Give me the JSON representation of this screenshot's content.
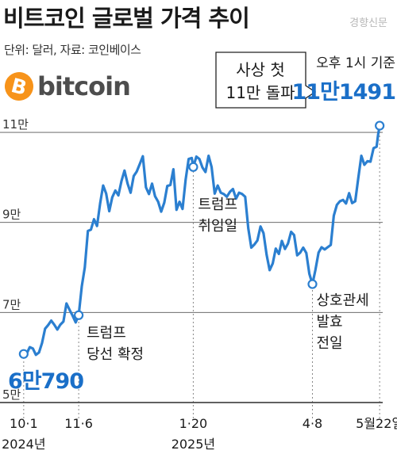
{
  "header": {
    "title": "비트코인 글로벌 가격 추이",
    "source_mark": "경향신문",
    "unit_source": "단위: 달러, 자료: 코인베이스"
  },
  "brand": {
    "symbol": "B",
    "wordmark": "bitcoin",
    "coin_color": "#f7931a"
  },
  "colors": {
    "line": "#2b7fd0",
    "value_text": "#1a6fc8",
    "axis": "#222222",
    "guide": "#888888"
  },
  "callout": {
    "line1": "사상 첫",
    "line2": "11만 돌파"
  },
  "latest": {
    "time_label": "오후 1시 기준",
    "value_label": "11만1491"
  },
  "start_value_label": "6만790",
  "annotations": [
    {
      "date": "2024-11-06",
      "lines": [
        "트럼프",
        "당선 확정"
      ]
    },
    {
      "date": "2025-01-20",
      "lines": [
        "트럼프",
        "취임일"
      ]
    },
    {
      "date": "2025-04-08",
      "lines": [
        "상호관세",
        "발효",
        "전일"
      ]
    }
  ],
  "chart_data": {
    "type": "line",
    "title": "비트코인 글로벌 가격 추이",
    "unit": "달러",
    "ylim": [
      50000,
      113000
    ],
    "y_ticks": [
      {
        "value": 50000,
        "label": "5만"
      },
      {
        "value": 70000,
        "label": "7만"
      },
      {
        "value": 90000,
        "label": "9만"
      },
      {
        "value": 110000,
        "label": "11만"
      }
    ],
    "x_ticks": [
      {
        "date": "2024-10-01",
        "label": "10·1",
        "sub": "2024년"
      },
      {
        "date": "2024-11-06",
        "label": "11·6",
        "sub": ""
      },
      {
        "date": "2025-01-20",
        "label": "1·20",
        "sub": "2025년"
      },
      {
        "date": "2025-04-08",
        "label": "4·8",
        "sub": ""
      },
      {
        "date": "2025-05-22",
        "label": "5월22일",
        "sub": ""
      }
    ],
    "x_range": [
      "2024-09-29",
      "2025-05-24"
    ],
    "highlighted_points": [
      {
        "date": "2024-10-01",
        "value": 60790
      },
      {
        "date": "2024-11-06",
        "value": 69400
      },
      {
        "date": "2025-01-20",
        "value": 102300
      },
      {
        "date": "2025-04-08",
        "value": 76300
      },
      {
        "date": "2025-05-22",
        "value": 111491
      }
    ],
    "series": [
      {
        "points": [
          [
            "2024-10-01",
            60790
          ],
          [
            "2024-10-03",
            60900
          ],
          [
            "2024-10-05",
            62300
          ],
          [
            "2024-10-07",
            62000
          ],
          [
            "2024-10-09",
            60600
          ],
          [
            "2024-10-11",
            61100
          ],
          [
            "2024-10-13",
            63200
          ],
          [
            "2024-10-15",
            66400
          ],
          [
            "2024-10-17",
            67200
          ],
          [
            "2024-10-19",
            68200
          ],
          [
            "2024-10-21",
            67300
          ],
          [
            "2024-10-23",
            66200
          ],
          [
            "2024-10-25",
            67300
          ],
          [
            "2024-10-27",
            68000
          ],
          [
            "2024-10-29",
            72000
          ],
          [
            "2024-10-31",
            70600
          ],
          [
            "2024-11-02",
            69300
          ],
          [
            "2024-11-04",
            67800
          ],
          [
            "2024-11-06",
            69400
          ],
          [
            "2024-11-08",
            75800
          ],
          [
            "2024-11-10",
            80000
          ],
          [
            "2024-11-12",
            88100
          ],
          [
            "2024-11-14",
            88400
          ],
          [
            "2024-11-16",
            90700
          ],
          [
            "2024-11-18",
            89200
          ],
          [
            "2024-11-20",
            94200
          ],
          [
            "2024-11-22",
            98200
          ],
          [
            "2024-11-24",
            96400
          ],
          [
            "2024-11-26",
            92500
          ],
          [
            "2024-11-28",
            95600
          ],
          [
            "2024-11-30",
            97100
          ],
          [
            "2024-12-02",
            96000
          ],
          [
            "2024-12-04",
            99200
          ],
          [
            "2024-12-06",
            101500
          ],
          [
            "2024-12-08",
            98600
          ],
          [
            "2024-12-10",
            96600
          ],
          [
            "2024-12-12",
            100300
          ],
          [
            "2024-12-14",
            101300
          ],
          [
            "2024-12-16",
            103000
          ],
          [
            "2024-12-18",
            104700
          ],
          [
            "2024-12-20",
            97800
          ],
          [
            "2024-12-22",
            96300
          ],
          [
            "2024-12-24",
            98600
          ],
          [
            "2024-12-26",
            95800
          ],
          [
            "2024-12-28",
            94600
          ],
          [
            "2024-12-30",
            92400
          ],
          [
            "2025-01-01",
            94400
          ],
          [
            "2025-01-03",
            98100
          ],
          [
            "2025-01-05",
            98300
          ],
          [
            "2025-01-07",
            101800
          ],
          [
            "2025-01-09",
            92800
          ],
          [
            "2025-01-11",
            94600
          ],
          [
            "2025-01-13",
            93000
          ],
          [
            "2025-01-15",
            99500
          ],
          [
            "2025-01-17",
            104100
          ],
          [
            "2025-01-19",
            104300
          ],
          [
            "2025-01-20",
            102300
          ],
          [
            "2025-01-22",
            104600
          ],
          [
            "2025-01-24",
            104100
          ],
          [
            "2025-01-26",
            102200
          ],
          [
            "2025-01-28",
            101200
          ],
          [
            "2025-01-30",
            104800
          ],
          [
            "2025-02-01",
            102300
          ],
          [
            "2025-02-03",
            96400
          ],
          [
            "2025-02-05",
            98200
          ],
          [
            "2025-02-07",
            96600
          ],
          [
            "2025-02-09",
            96300
          ],
          [
            "2025-02-11",
            95700
          ],
          [
            "2025-02-13",
            96800
          ],
          [
            "2025-02-15",
            97400
          ],
          [
            "2025-02-17",
            95300
          ],
          [
            "2025-02-19",
            96600
          ],
          [
            "2025-02-21",
            96300
          ],
          [
            "2025-02-23",
            95700
          ],
          [
            "2025-02-25",
            88700
          ],
          [
            "2025-02-27",
            84400
          ],
          [
            "2025-03-01",
            85100
          ],
          [
            "2025-03-03",
            86000
          ],
          [
            "2025-03-05",
            89100
          ],
          [
            "2025-03-07",
            87600
          ],
          [
            "2025-03-09",
            82800
          ],
          [
            "2025-03-11",
            79400
          ],
          [
            "2025-03-13",
            80900
          ],
          [
            "2025-03-15",
            84200
          ],
          [
            "2025-03-17",
            83000
          ],
          [
            "2025-03-19",
            85900
          ],
          [
            "2025-03-21",
            84100
          ],
          [
            "2025-03-23",
            85300
          ],
          [
            "2025-03-25",
            87900
          ],
          [
            "2025-03-27",
            87200
          ],
          [
            "2025-03-29",
            82700
          ],
          [
            "2025-03-31",
            83300
          ],
          [
            "2025-04-02",
            84400
          ],
          [
            "2025-04-04",
            83200
          ],
          [
            "2025-04-06",
            78600
          ],
          [
            "2025-04-08",
            76300
          ],
          [
            "2025-04-10",
            79500
          ],
          [
            "2025-04-12",
            83300
          ],
          [
            "2025-04-14",
            84500
          ],
          [
            "2025-04-16",
            84000
          ],
          [
            "2025-04-18",
            84500
          ],
          [
            "2025-04-20",
            85000
          ],
          [
            "2025-04-22",
            91500
          ],
          [
            "2025-04-24",
            93900
          ],
          [
            "2025-04-26",
            94700
          ],
          [
            "2025-04-28",
            95000
          ],
          [
            "2025-04-30",
            94200
          ],
          [
            "2025-05-02",
            96500
          ],
          [
            "2025-05-04",
            94300
          ],
          [
            "2025-05-06",
            94700
          ],
          [
            "2025-05-08",
            99800
          ],
          [
            "2025-05-10",
            104800
          ],
          [
            "2025-05-12",
            102800
          ],
          [
            "2025-05-14",
            103600
          ],
          [
            "2025-05-16",
            103500
          ],
          [
            "2025-05-18",
            106500
          ],
          [
            "2025-05-20",
            106800
          ],
          [
            "2025-05-21",
            109500
          ],
          [
            "2025-05-22",
            111491
          ]
        ]
      }
    ]
  }
}
